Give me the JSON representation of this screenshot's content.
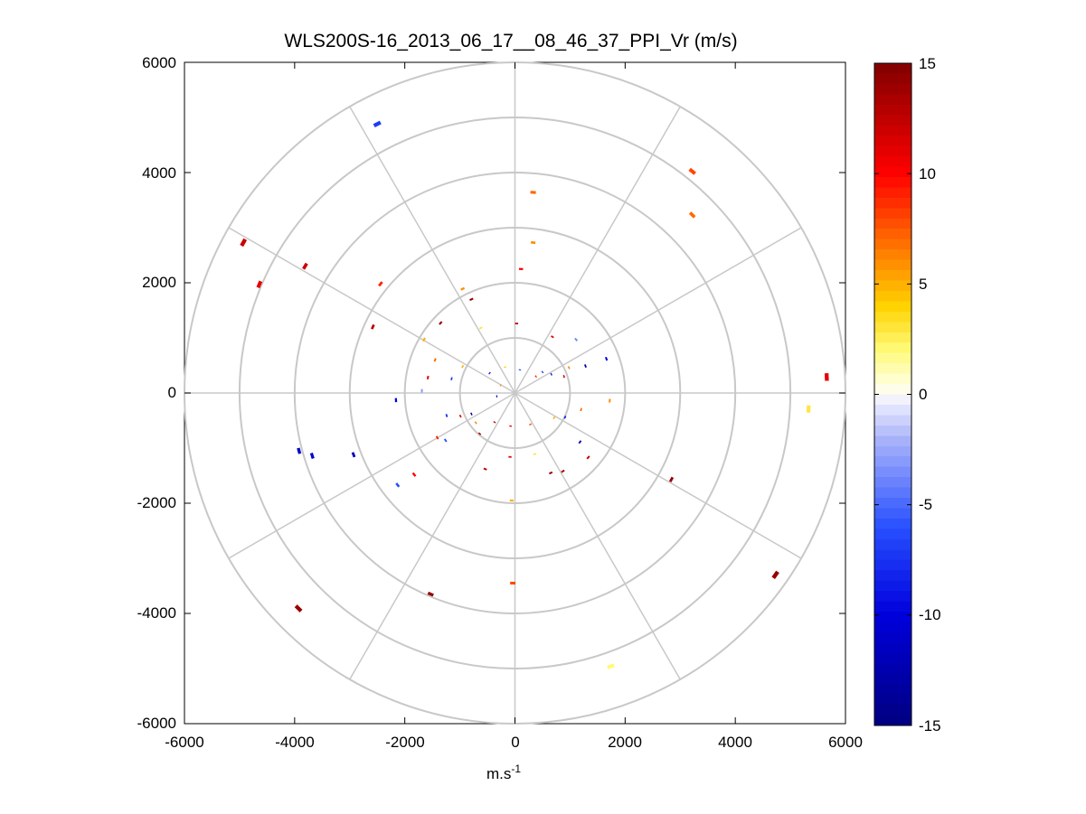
{
  "chart_data": {
    "type": "scatter",
    "title": "WLS200S-16_2013_06_17__08_46_37_PPI_Vr (m/s)",
    "xlabel": "m.s",
    "xlabel_superscript": "-1",
    "ylabel": "",
    "xlim": [
      -6000,
      6000
    ],
    "ylim": [
      -6000,
      6000
    ],
    "xticks": [
      "-6000",
      "-4000",
      "-2000",
      "0",
      "2000",
      "4000",
      "6000"
    ],
    "yticks": [
      "6000",
      "4000",
      "2000",
      "0",
      "-2000",
      "-4000",
      "-6000"
    ],
    "colorbar": {
      "range": [
        -15,
        15
      ],
      "ticks": [
        "15",
        "10",
        "5",
        "0",
        "-5",
        "-10",
        "-15"
      ],
      "colors": {
        "max": "#800000",
        "high": "#ff0000",
        "mid_high": "#ff8c00",
        "low_pos": "#ffff80",
        "zero": "#ffffff",
        "low_neg": "#c8c8ff",
        "mid_neg": "#0000ff",
        "min": "#000080"
      }
    },
    "polar_grid": {
      "rings": [
        1000,
        2000,
        3000,
        4000,
        5000,
        6000
      ],
      "spoke_angles_deg": [
        0,
        30,
        60,
        90,
        120,
        150,
        180,
        210,
        240,
        270,
        300,
        330
      ],
      "grid_color": "#c8c8c8"
    },
    "points": [
      {
        "x": -2500,
        "y": 4880,
        "v": -7
      },
      {
        "x": -4930,
        "y": 2730,
        "v": 12
      },
      {
        "x": -4640,
        "y": 1970,
        "v": 11
      },
      {
        "x": -3810,
        "y": 2300,
        "v": 12
      },
      {
        "x": -2440,
        "y": 1980,
        "v": 9
      },
      {
        "x": -2580,
        "y": 1200,
        "v": 13
      },
      {
        "x": -950,
        "y": 1890,
        "v": 6
      },
      {
        "x": -790,
        "y": 1700,
        "v": 14
      },
      {
        "x": -1350,
        "y": 1270,
        "v": 14
      },
      {
        "x": 330,
        "y": 3640,
        "v": 7
      },
      {
        "x": 330,
        "y": 2730,
        "v": 6
      },
      {
        "x": 110,
        "y": 2250,
        "v": 10
      },
      {
        "x": 3220,
        "y": 4020,
        "v": 8
      },
      {
        "x": 3220,
        "y": 3230,
        "v": 7
      },
      {
        "x": 5660,
        "y": 290,
        "v": 11
      },
      {
        "x": 5330,
        "y": -290,
        "v": 3
      },
      {
        "x": 2840,
        "y": -1570,
        "v": 14
      },
      {
        "x": 4730,
        "y": -3300,
        "v": 14
      },
      {
        "x": 1740,
        "y": -4960,
        "v": 2
      },
      {
        "x": -40,
        "y": -3450,
        "v": 8
      },
      {
        "x": -1530,
        "y": -3650,
        "v": 14
      },
      {
        "x": -3930,
        "y": -3910,
        "v": 14
      },
      {
        "x": -3920,
        "y": -1050,
        "v": -11
      },
      {
        "x": -3680,
        "y": -1140,
        "v": -10
      },
      {
        "x": -2930,
        "y": -1120,
        "v": -12
      },
      {
        "x": -2160,
        "y": -130,
        "v": -10
      },
      {
        "x": -1650,
        "y": 970,
        "v": 5
      },
      {
        "x": -1450,
        "y": 600,
        "v": 7
      },
      {
        "x": -1580,
        "y": 280,
        "v": 11
      },
      {
        "x": -1690,
        "y": 40,
        "v": -3
      },
      {
        "x": -1150,
        "y": 260,
        "v": -7
      },
      {
        "x": -950,
        "y": 480,
        "v": 5
      },
      {
        "x": -620,
        "y": 1180,
        "v": 3
      },
      {
        "x": 30,
        "y": 1260,
        "v": 13
      },
      {
        "x": 680,
        "y": 1020,
        "v": 11
      },
      {
        "x": 1110,
        "y": 970,
        "v": -4
      },
      {
        "x": 1660,
        "y": 620,
        "v": -10
      },
      {
        "x": 1280,
        "y": 490,
        "v": -13
      },
      {
        "x": 980,
        "y": 460,
        "v": 6
      },
      {
        "x": 660,
        "y": 340,
        "v": -8
      },
      {
        "x": 890,
        "y": 300,
        "v": 12
      },
      {
        "x": 500,
        "y": 380,
        "v": -7
      },
      {
        "x": 380,
        "y": 300,
        "v": 9
      },
      {
        "x": 90,
        "y": 420,
        "v": -6
      },
      {
        "x": -180,
        "y": 470,
        "v": 4
      },
      {
        "x": -460,
        "y": 360,
        "v": -9
      },
      {
        "x": -260,
        "y": 140,
        "v": 6
      },
      {
        "x": -330,
        "y": -60,
        "v": -12
      },
      {
        "x": -1240,
        "y": -410,
        "v": -8
      },
      {
        "x": -990,
        "y": -420,
        "v": 11
      },
      {
        "x": -790,
        "y": -380,
        "v": -13
      },
      {
        "x": -710,
        "y": -540,
        "v": 6
      },
      {
        "x": -1410,
        "y": -810,
        "v": 9
      },
      {
        "x": -1260,
        "y": -860,
        "v": -6
      },
      {
        "x": -640,
        "y": -740,
        "v": 13
      },
      {
        "x": -370,
        "y": -530,
        "v": 12
      },
      {
        "x": -80,
        "y": -600,
        "v": 10
      },
      {
        "x": 280,
        "y": -570,
        "v": 8
      },
      {
        "x": -90,
        "y": -1160,
        "v": 11
      },
      {
        "x": 360,
        "y": -1110,
        "v": 3
      },
      {
        "x": 910,
        "y": -440,
        "v": -9
      },
      {
        "x": 710,
        "y": -450,
        "v": 5
      },
      {
        "x": 1200,
        "y": -300,
        "v": 7
      },
      {
        "x": 1720,
        "y": -140,
        "v": 6
      },
      {
        "x": 1180,
        "y": -890,
        "v": -12
      },
      {
        "x": 1330,
        "y": -1170,
        "v": 12
      },
      {
        "x": 870,
        "y": -1420,
        "v": 13
      },
      {
        "x": 650,
        "y": -1450,
        "v": 14
      },
      {
        "x": -1830,
        "y": -1480,
        "v": 10
      },
      {
        "x": -2130,
        "y": -1670,
        "v": -6
      },
      {
        "x": -540,
        "y": -1380,
        "v": 13
      },
      {
        "x": -60,
        "y": -1950,
        "v": 5
      }
    ]
  }
}
